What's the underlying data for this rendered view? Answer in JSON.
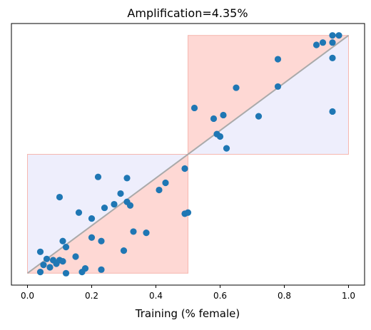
{
  "chart_data": {
    "type": "scatter",
    "title": "Amplification=4.35%",
    "xlabel": "Training (% female)",
    "ylabel": "",
    "xlim": [
      -0.05,
      1.05
    ],
    "ylim": [
      -0.05,
      1.05
    ],
    "x_ticks": [
      "0.0",
      "0.2",
      "0.4",
      "0.6",
      "0.8",
      "1.0"
    ],
    "x_tick_values": [
      0.0,
      0.2,
      0.4,
      0.6,
      0.8,
      1.0
    ],
    "y_ticks_visible": false,
    "grid": false,
    "colors": {
      "points": "#1f77b4",
      "diagonal": "#aaaaaa",
      "region_blue": "#eeeefc",
      "region_red": "#fed8d4",
      "region_red_edge": "#f6b7b0"
    },
    "regions": [
      {
        "color": "blue",
        "x": [
          0.0,
          0.5
        ],
        "y": [
          0.0,
          0.5
        ]
      },
      {
        "color": "blue",
        "x": [
          0.5,
          1.0
        ],
        "y": [
          0.5,
          1.0
        ]
      },
      {
        "color": "red",
        "x": [
          0.5,
          1.0
        ],
        "y": [
          0.5,
          1.0
        ],
        "triangle": "upper"
      },
      {
        "color": "red",
        "x": [
          0.0,
          0.5
        ],
        "y": [
          0.0,
          0.5
        ],
        "triangle": "lower"
      }
    ],
    "diagonal": {
      "x": [
        0.0,
        1.0
      ],
      "y": [
        0.0,
        1.0
      ]
    },
    "points": [
      {
        "x": 0.95,
        "y": 1.0
      },
      {
        "x": 0.97,
        "y": 1.0
      },
      {
        "x": 0.92,
        "y": 0.97
      },
      {
        "x": 0.95,
        "y": 0.97
      },
      {
        "x": 0.9,
        "y": 0.96
      },
      {
        "x": 0.78,
        "y": 0.9
      },
      {
        "x": 0.95,
        "y": 0.905
      },
      {
        "x": 0.78,
        "y": 0.785
      },
      {
        "x": 0.65,
        "y": 0.78
      },
      {
        "x": 0.52,
        "y": 0.695
      },
      {
        "x": 0.61,
        "y": 0.665
      },
      {
        "x": 0.72,
        "y": 0.66
      },
      {
        "x": 0.95,
        "y": 0.68
      },
      {
        "x": 0.58,
        "y": 0.65
      },
      {
        "x": 0.59,
        "y": 0.585
      },
      {
        "x": 0.6,
        "y": 0.575
      },
      {
        "x": 0.62,
        "y": 0.525
      },
      {
        "x": 0.49,
        "y": 0.44
      },
      {
        "x": 0.22,
        "y": 0.405
      },
      {
        "x": 0.31,
        "y": 0.4
      },
      {
        "x": 0.43,
        "y": 0.38
      },
      {
        "x": 0.29,
        "y": 0.335
      },
      {
        "x": 0.41,
        "y": 0.35
      },
      {
        "x": 0.1,
        "y": 0.32
      },
      {
        "x": 0.31,
        "y": 0.3
      },
      {
        "x": 0.32,
        "y": 0.285
      },
      {
        "x": 0.27,
        "y": 0.29
      },
      {
        "x": 0.24,
        "y": 0.275
      },
      {
        "x": 0.16,
        "y": 0.255
      },
      {
        "x": 0.5,
        "y": 0.255
      },
      {
        "x": 0.49,
        "y": 0.25
      },
      {
        "x": 0.2,
        "y": 0.23
      },
      {
        "x": 0.33,
        "y": 0.175
      },
      {
        "x": 0.37,
        "y": 0.17
      },
      {
        "x": 0.2,
        "y": 0.15
      },
      {
        "x": 0.23,
        "y": 0.135
      },
      {
        "x": 0.11,
        "y": 0.135
      },
      {
        "x": 0.12,
        "y": 0.11
      },
      {
        "x": 0.3,
        "y": 0.095
      },
      {
        "x": 0.04,
        "y": 0.09
      },
      {
        "x": 0.06,
        "y": 0.06
      },
      {
        "x": 0.15,
        "y": 0.07
      },
      {
        "x": 0.08,
        "y": 0.055
      },
      {
        "x": 0.1,
        "y": 0.055
      },
      {
        "x": 0.11,
        "y": 0.05
      },
      {
        "x": 0.09,
        "y": 0.04
      },
      {
        "x": 0.07,
        "y": 0.025
      },
      {
        "x": 0.05,
        "y": 0.035
      },
      {
        "x": 0.18,
        "y": 0.02
      },
      {
        "x": 0.23,
        "y": 0.015
      },
      {
        "x": 0.04,
        "y": 0.005
      },
      {
        "x": 0.17,
        "y": 0.005
      },
      {
        "x": 0.12,
        "y": 0.0
      }
    ]
  }
}
